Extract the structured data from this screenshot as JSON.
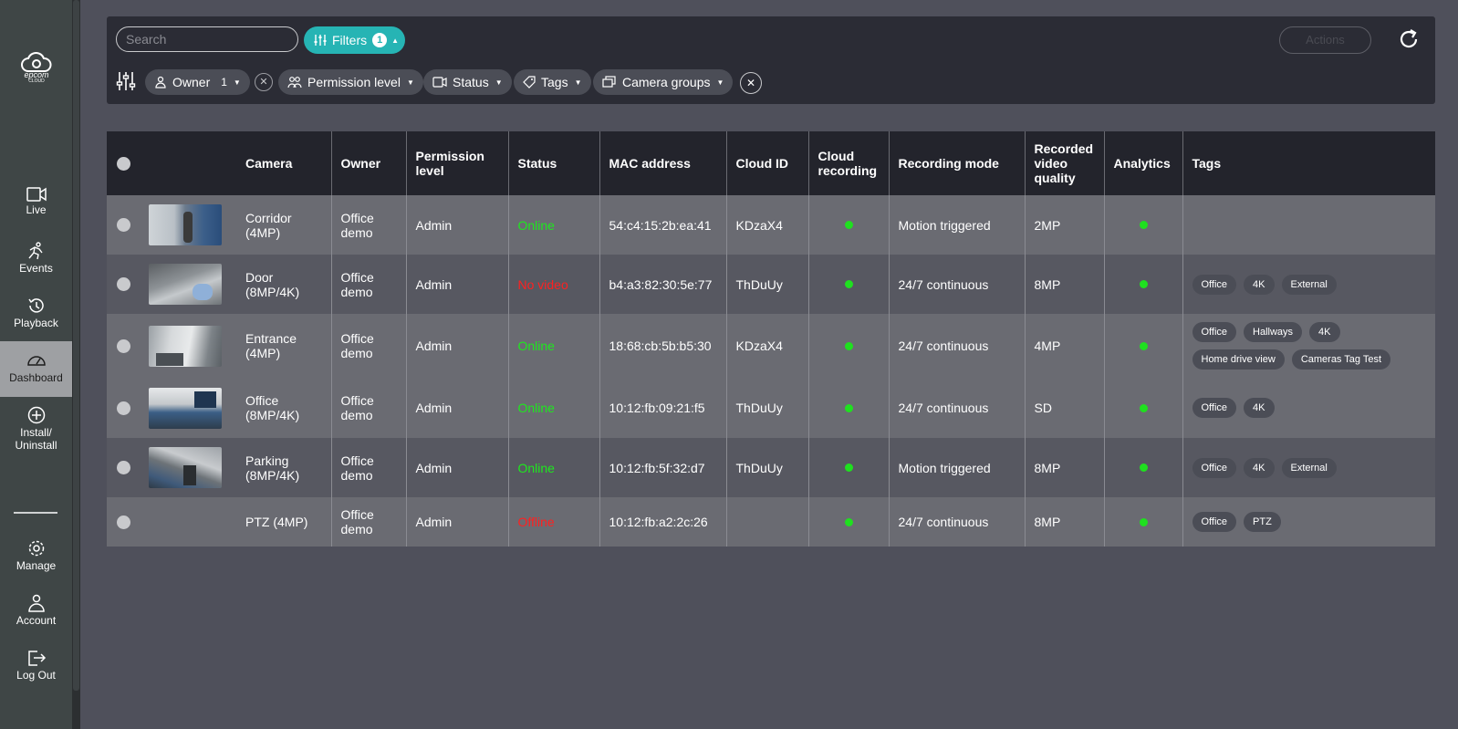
{
  "sidebar": {
    "logo": {
      "text": "epcom",
      "sub": "CLOUD"
    },
    "items": [
      {
        "label": "Live"
      },
      {
        "label": "Events"
      },
      {
        "label": "Playback"
      },
      {
        "label": "Dashboard"
      },
      {
        "label": "Install/\nUninstall"
      },
      {
        "label": "Manage"
      },
      {
        "label": "Account"
      },
      {
        "label": "Log Out"
      }
    ]
  },
  "toolbar": {
    "search_placeholder": "Search",
    "filters_label": "Filters",
    "filters_count": "1",
    "actions_label": "Actions"
  },
  "filter_chips": {
    "owner": {
      "label": "Owner",
      "count": "1"
    },
    "permission": {
      "label": "Permission level"
    },
    "status": {
      "label": "Status"
    },
    "tags": {
      "label": "Tags"
    },
    "camera_groups": {
      "label": "Camera groups"
    }
  },
  "table": {
    "headers": {
      "camera": "Camera",
      "owner": "Owner",
      "permission": "Permission level",
      "status": "Status",
      "mac": "MAC address",
      "cloud_id": "Cloud ID",
      "cloud_recording": "Cloud recording",
      "recording_mode": "Recording mode",
      "quality": "Recorded video quality",
      "analytics": "Analytics",
      "tags": "Tags"
    },
    "rows": [
      {
        "camera": "Corridor (4MP)",
        "owner": "Office demo",
        "permission": "Admin",
        "status": "Online",
        "mac": "54:c4:15:2b:ea:41",
        "cloud_id": "KDzaX4",
        "recording_mode": "Motion triggered",
        "quality": "2MP",
        "tags": []
      },
      {
        "camera": "Door (8MP/4K)",
        "owner": "Office demo",
        "permission": "Admin",
        "status": "No video",
        "mac": "b4:a3:82:30:5e:77",
        "cloud_id": "ThDuUy",
        "recording_mode": "24/7 continuous",
        "quality": "8MP",
        "tags": [
          "Office",
          "4K",
          "External"
        ]
      },
      {
        "camera": "Entrance (4MP)",
        "owner": "Office demo",
        "permission": "Admin",
        "status": "Online",
        "mac": "18:68:cb:5b:b5:30",
        "cloud_id": "KDzaX4",
        "recording_mode": "24/7 continuous",
        "quality": "4MP",
        "tags": [
          "Office",
          "Hallways",
          "4K",
          "Home drive view",
          "Cameras Tag Test"
        ]
      },
      {
        "camera": "Office (8MP/4K)",
        "owner": "Office demo",
        "permission": "Admin",
        "status": "Online",
        "mac": "10:12:fb:09:21:f5",
        "cloud_id": "ThDuUy",
        "recording_mode": "24/7 continuous",
        "quality": "SD",
        "tags": [
          "Office",
          "4K"
        ]
      },
      {
        "camera": "Parking (8MP/4K)",
        "owner": "Office demo",
        "permission": "Admin",
        "status": "Online",
        "mac": "10:12:fb:5f:32:d7",
        "cloud_id": "ThDuUy",
        "recording_mode": "Motion triggered",
        "quality": "8MP",
        "tags": [
          "Office",
          "4K",
          "External"
        ]
      },
      {
        "camera": "PTZ (4MP)",
        "owner": "Office demo",
        "permission": "Admin",
        "status": "Offline",
        "mac": "10:12:fb:a2:2c:26",
        "cloud_id": "",
        "recording_mode": "24/7 continuous",
        "quality": "8MP",
        "tags": [
          "Office",
          "PTZ"
        ]
      }
    ]
  },
  "colors": {
    "accent": "#26b4b4",
    "online": "#1ee81e",
    "offline": "#ff2020",
    "indicator": "#1fe01f"
  }
}
